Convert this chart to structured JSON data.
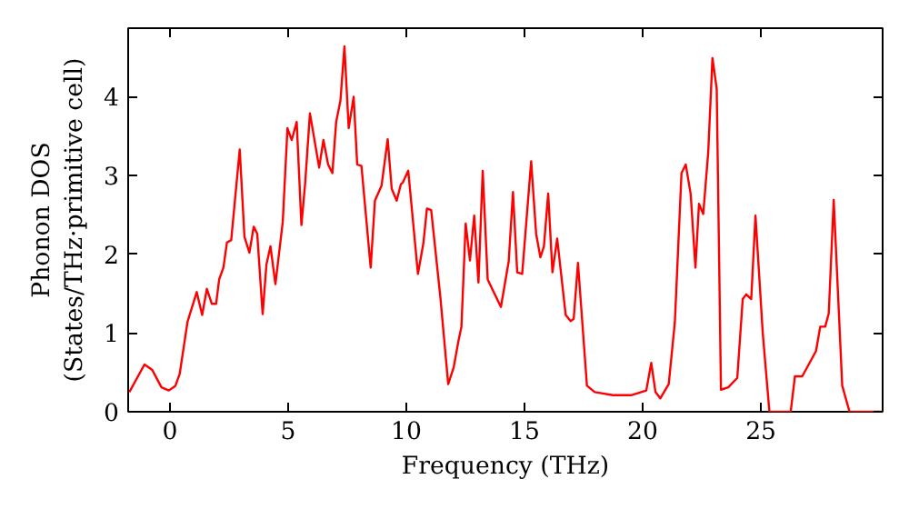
{
  "chart_data": {
    "type": "line",
    "xlabel": "Frequency (THz)",
    "ylabel": "Phonon DOS\n(States/THz·primitive cell)",
    "xlim": [
      -1.77,
      30.15
    ],
    "ylim": [
      0,
      4.87
    ],
    "xticks": [
      0,
      5,
      10,
      15,
      20,
      25
    ],
    "yticks": [
      0,
      1,
      2,
      3,
      4
    ],
    "grid": false,
    "line_style": "solid",
    "series": [
      {
        "color": "#ff0000",
        "x": [
          -1.72,
          -1.08,
          -0.75,
          -0.36,
          -0.05,
          0.23,
          0.41,
          0.74,
          1.13,
          1.36,
          1.56,
          1.77,
          1.95,
          2.08,
          2.26,
          2.41,
          2.59,
          2.95,
          3.15,
          3.36,
          3.54,
          3.69,
          3.92,
          4.08,
          4.25,
          4.46,
          4.77,
          4.97,
          5.15,
          5.36,
          5.56,
          5.72,
          5.92,
          6.31,
          6.49,
          6.69,
          6.87,
          7.03,
          7.21,
          7.38,
          7.56,
          7.77,
          7.92,
          8.1,
          8.49,
          8.67,
          8.95,
          9.21,
          9.38,
          9.59,
          9.77,
          9.85,
          10.08,
          10.49,
          10.72,
          10.87,
          11.05,
          11.44,
          11.77,
          12.0,
          12.21,
          12.33,
          12.51,
          12.69,
          12.87,
          13.05,
          13.23,
          13.44,
          14.0,
          14.33,
          14.51,
          14.69,
          14.9,
          15.28,
          15.49,
          15.67,
          15.82,
          16.0,
          16.18,
          16.38,
          16.74,
          16.95,
          17.08,
          17.26,
          17.64,
          17.97,
          18.74,
          19.51,
          20.15,
          20.36,
          20.54,
          20.74,
          21.1,
          21.36,
          21.64,
          21.82,
          22.03,
          22.23,
          22.38,
          22.56,
          22.77,
          22.95,
          23.13,
          23.31,
          23.62,
          24.0,
          24.23,
          24.38,
          24.59,
          24.77,
          25.08,
          25.36,
          26.26,
          26.44,
          26.75,
          27.33,
          27.51,
          27.72,
          27.87,
          28.08,
          28.44,
          28.75,
          30.15
        ],
        "values": [
          0.25,
          0.6,
          0.53,
          0.31,
          0.27,
          0.33,
          0.48,
          1.14,
          1.52,
          1.23,
          1.56,
          1.37,
          1.37,
          1.68,
          1.83,
          2.15,
          2.18,
          3.33,
          2.22,
          2.02,
          2.35,
          2.26,
          1.24,
          1.87,
          2.1,
          1.62,
          2.41,
          3.6,
          3.45,
          3.68,
          2.37,
          2.91,
          3.79,
          3.1,
          3.45,
          3.14,
          3.03,
          3.68,
          3.95,
          4.64,
          3.6,
          4.0,
          3.14,
          3.12,
          1.83,
          2.68,
          2.87,
          3.46,
          2.83,
          2.68,
          2.89,
          2.91,
          3.06,
          1.75,
          2.14,
          2.58,
          2.56,
          1.45,
          0.35,
          0.56,
          0.91,
          1.08,
          2.39,
          1.92,
          2.49,
          1.64,
          3.06,
          1.68,
          1.33,
          1.91,
          2.79,
          1.77,
          1.75,
          3.18,
          2.26,
          1.96,
          2.1,
          2.77,
          1.77,
          2.2,
          1.23,
          1.15,
          1.18,
          1.89,
          0.33,
          0.25,
          0.21,
          0.21,
          0.27,
          0.62,
          0.25,
          0.17,
          0.35,
          1.14,
          3.03,
          3.14,
          2.76,
          1.83,
          2.64,
          2.51,
          3.29,
          4.49,
          4.1,
          0.28,
          0.31,
          0.43,
          1.43,
          1.49,
          1.43,
          2.49,
          0.99,
          0,
          0,
          0.45,
          0.45,
          0.77,
          1.08,
          1.08,
          1.25,
          2.69,
          0.33,
          0,
          0
        ]
      }
    ]
  }
}
